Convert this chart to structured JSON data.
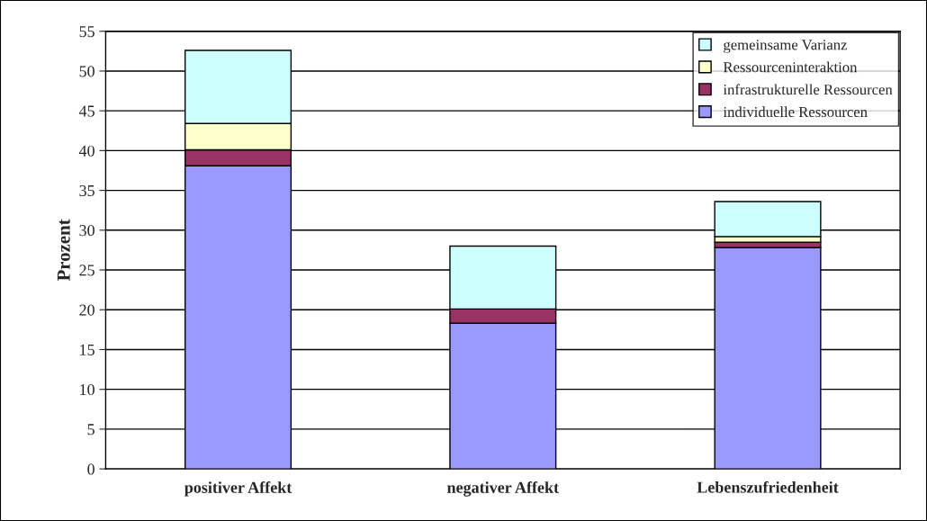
{
  "chart_data": {
    "type": "bar",
    "stacked": true,
    "ylabel": "Prozent",
    "categories": [
      "positiver Affekt",
      "negativer Affekt",
      "Lebenszufriedenheit"
    ],
    "series": [
      {
        "name": "individuelle Ressourcen",
        "color": "#9999ff",
        "values": [
          38.1,
          18.3,
          27.8
        ]
      },
      {
        "name": "infrastrukturelle Ressourcen",
        "color": "#993366",
        "values": [
          2.0,
          1.8,
          0.7
        ]
      },
      {
        "name": "Ressourceninteraktion",
        "color": "#ffffcc",
        "values": [
          3.3,
          0,
          0.7
        ]
      },
      {
        "name": "gemeinsame Varianz",
        "color": "#ccffff",
        "values": [
          9.2,
          7.9,
          4.4
        ]
      }
    ],
    "ylim": [
      0,
      55
    ],
    "yticks": [
      0,
      5,
      10,
      15,
      20,
      25,
      30,
      35,
      40,
      45,
      50,
      55
    ],
    "grid": "y",
    "legend": "top right"
  }
}
